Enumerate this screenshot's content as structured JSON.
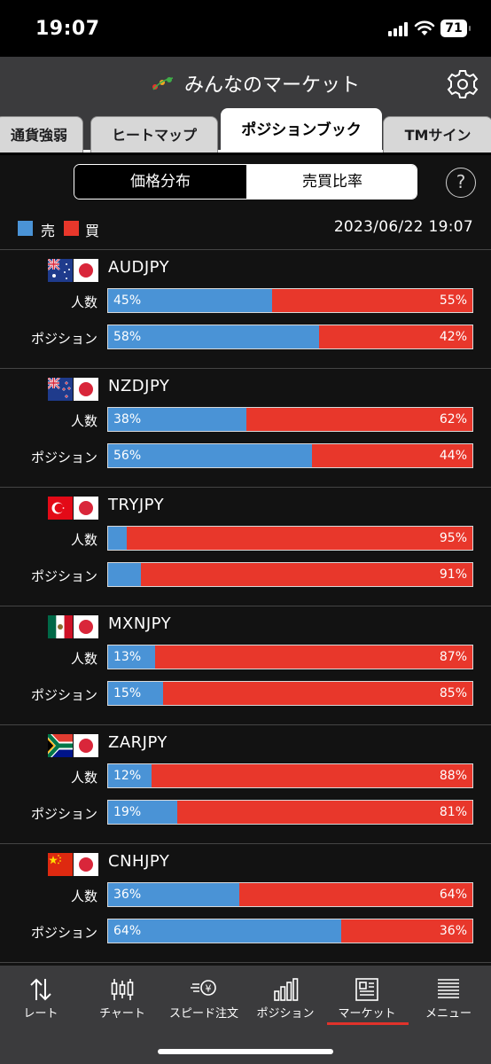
{
  "status_bar": {
    "time": "19:07",
    "battery": "71"
  },
  "header": {
    "title": "みんなのマーケット",
    "logo_icon": "minna-logo-icon",
    "settings_icon": "gear-icon"
  },
  "tabs": [
    {
      "label": "通貨強弱",
      "active": false
    },
    {
      "label": "ヒートマップ",
      "active": false
    },
    {
      "label": "ポジションブック",
      "active": true
    },
    {
      "label": "TMサイン",
      "active": false
    }
  ],
  "segmented": {
    "options": [
      "価格分布",
      "売買比率"
    ],
    "selected": "売買比率"
  },
  "help_label": "?",
  "legend": {
    "sell_label": "売",
    "buy_label": "買",
    "sell_color": "#4a93d6",
    "buy_color": "#e8372b"
  },
  "timestamp": "2023/06/22 19:07",
  "row_labels": {
    "traders": "人数",
    "positions": "ポジション"
  },
  "pairs": [
    {
      "name": "AUDJPY",
      "flag": "australia-flag-icon",
      "traders": {
        "sell": 45,
        "buy": 55,
        "sell_text": "45%",
        "buy_text": "55%"
      },
      "positions": {
        "sell": 58,
        "buy": 42,
        "sell_text": "58%",
        "buy_text": "42%"
      }
    },
    {
      "name": "NZDJPY",
      "flag": "new-zealand-flag-icon",
      "traders": {
        "sell": 38,
        "buy": 62,
        "sell_text": "38%",
        "buy_text": "62%"
      },
      "positions": {
        "sell": 56,
        "buy": 44,
        "sell_text": "56%",
        "buy_text": "44%"
      }
    },
    {
      "name": "TRYJPY",
      "flag": "turkey-flag-icon",
      "traders": {
        "sell": 5,
        "buy": 95,
        "sell_text": "",
        "buy_text": "95%"
      },
      "positions": {
        "sell": 9,
        "buy": 91,
        "sell_text": "",
        "buy_text": "91%"
      }
    },
    {
      "name": "MXNJPY",
      "flag": "mexico-flag-icon",
      "traders": {
        "sell": 13,
        "buy": 87,
        "sell_text": "13%",
        "buy_text": "87%"
      },
      "positions": {
        "sell": 15,
        "buy": 85,
        "sell_text": "15%",
        "buy_text": "85%"
      }
    },
    {
      "name": "ZARJPY",
      "flag": "south-africa-flag-icon",
      "traders": {
        "sell": 12,
        "buy": 88,
        "sell_text": "12%",
        "buy_text": "88%"
      },
      "positions": {
        "sell": 19,
        "buy": 81,
        "sell_text": "19%",
        "buy_text": "81%"
      }
    },
    {
      "name": "CNHJPY",
      "flag": "china-flag-icon",
      "traders": {
        "sell": 36,
        "buy": 64,
        "sell_text": "36%",
        "buy_text": "64%"
      },
      "positions": {
        "sell": 64,
        "buy": 36,
        "sell_text": "64%",
        "buy_text": "36%"
      }
    }
  ],
  "tabbar": [
    {
      "label": "レート",
      "icon": "rate-arrows-icon",
      "active": false
    },
    {
      "label": "チャート",
      "icon": "candlestick-icon",
      "active": false
    },
    {
      "label": "スピード注文",
      "icon": "speed-order-icon",
      "active": false
    },
    {
      "label": "ポジション",
      "icon": "bar-chart-icon",
      "active": false
    },
    {
      "label": "マーケット",
      "icon": "newspaper-icon",
      "active": true
    },
    {
      "label": "メニュー",
      "icon": "menu-list-icon",
      "active": false
    }
  ]
}
